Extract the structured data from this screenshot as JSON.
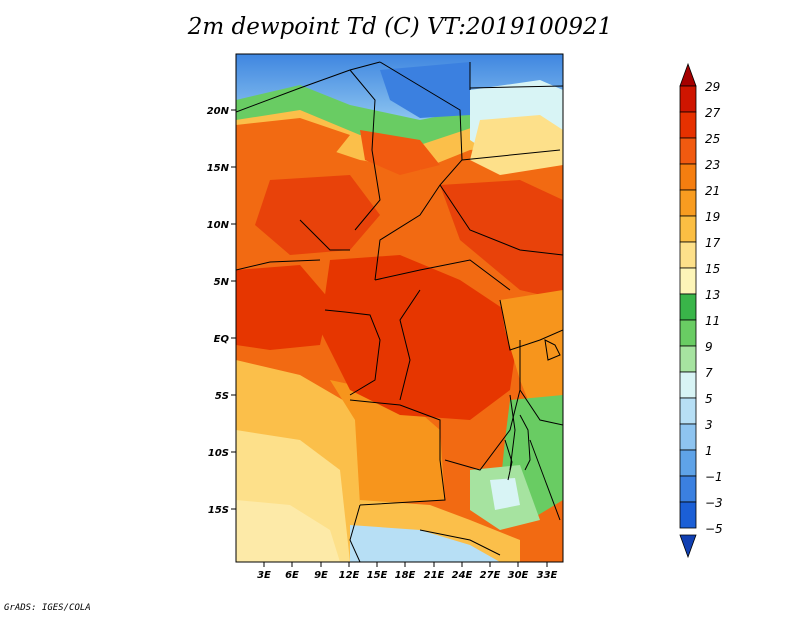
{
  "title": "2m dewpoint Td (C) VT:2019100921",
  "credit": "GrADS: IGES/COLA",
  "map": {
    "lat_labels": [
      "20N",
      "15N",
      "10N",
      "5N",
      "EQ",
      "5S",
      "10S",
      "15S"
    ],
    "lon_labels": [
      "3E",
      "6E",
      "9E",
      "12E",
      "15E",
      "18E",
      "21E",
      "24E",
      "27E",
      "30E",
      "33E"
    ]
  },
  "colorbar": {
    "levels": [
      "29",
      "27",
      "25",
      "23",
      "21",
      "19",
      "17",
      "15",
      "13",
      "11",
      "9",
      "7",
      "5",
      "3",
      "1",
      "−1",
      "−3",
      "−5"
    ],
    "colors": [
      "#a50000",
      "#cf1500",
      "#e63100",
      "#f15a10",
      "#f57e10",
      "#f89c20",
      "#fbbe43",
      "#fde08a",
      "#fdf5b8",
      "#39b549",
      "#69cc63",
      "#a6e3a0",
      "#d8f4f5",
      "#b7dff5",
      "#8ec4f0",
      "#5fa3e8",
      "#3b80e0",
      "#1b5fd6",
      "#1140b3"
    ]
  }
}
